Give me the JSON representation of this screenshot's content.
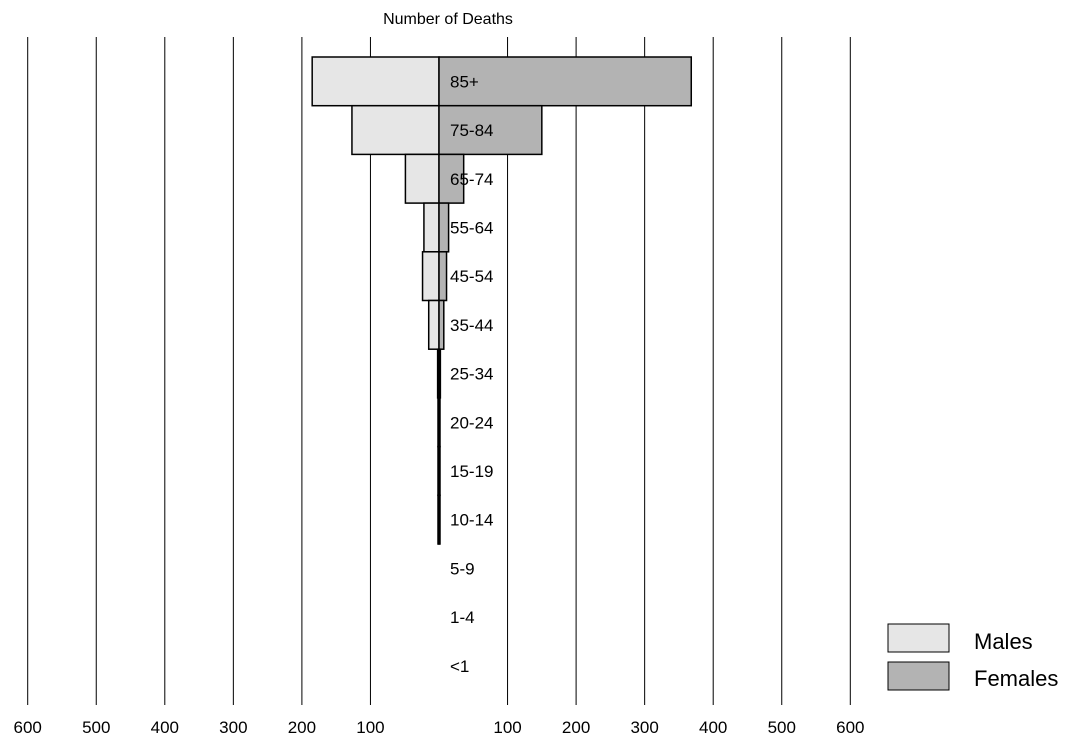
{
  "colors": {
    "males": "#e6e6e6",
    "females": "#b3b3b3",
    "stroke": "#000000",
    "gridline": "#000000"
  },
  "chart_data": {
    "type": "bar",
    "orientation": "horizontal",
    "layout": "population-pyramid",
    "title": "Number of Deaths",
    "xlabel": "",
    "ylabel": "",
    "categories": [
      "85+",
      "75-84",
      "65-74",
      "55-64",
      "45-54",
      "35-44",
      "25-34",
      "20-24",
      "15-19",
      "10-14",
      "5-9",
      "1-4",
      "<1"
    ],
    "series": [
      {
        "name": "Males",
        "side": "left",
        "values": [
          185,
          127,
          49,
          22,
          24,
          15,
          2,
          1,
          0.5,
          0.5,
          0,
          0,
          0
        ]
      },
      {
        "name": "Females",
        "side": "right",
        "values": [
          368,
          150,
          36,
          14,
          11,
          7,
          2,
          1,
          0.5,
          0.5,
          0,
          0,
          0
        ]
      }
    ],
    "xlim_left": [
      0,
      600
    ],
    "xlim_right": [
      0,
      600
    ],
    "x_ticks_left": [
      "600",
      "500",
      "400",
      "300",
      "200",
      "100"
    ],
    "x_ticks_right": [
      "100",
      "200",
      "300",
      "400",
      "500",
      "600"
    ],
    "grid": "vertical",
    "legend": {
      "position": "bottom-right",
      "entries": [
        "Males",
        "Females"
      ]
    }
  }
}
